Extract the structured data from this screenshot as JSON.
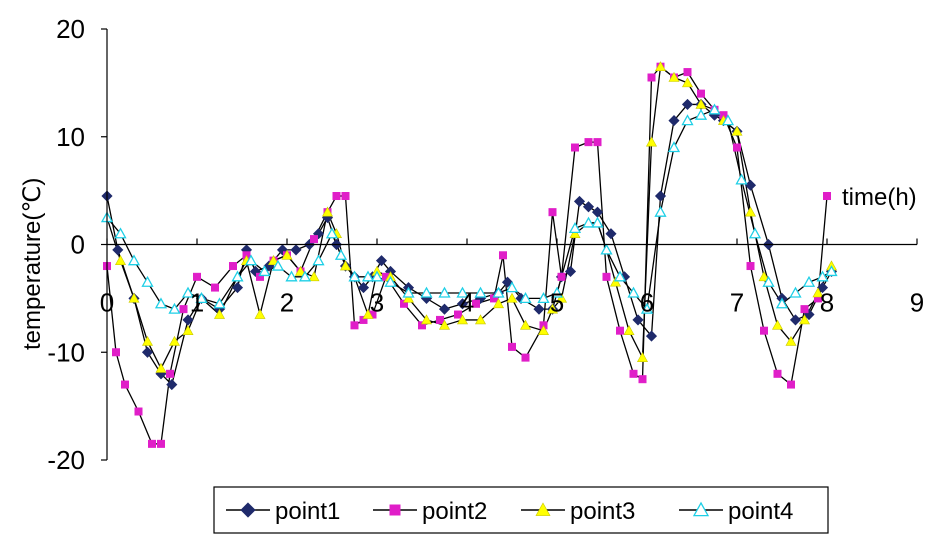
{
  "chart_data": {
    "type": "line",
    "xlabel": "time(h)",
    "ylabel": "temperature(℃)",
    "xlim": [
      0,
      9
    ],
    "ylim": [
      -20,
      20
    ],
    "xticks": [
      "0",
      "1",
      "2",
      "3",
      "4",
      "5",
      "6",
      "7",
      "8",
      "9"
    ],
    "yticks": [
      "20",
      "10",
      "0",
      "-10",
      "-20"
    ],
    "legend_position": "bottom",
    "grid": false,
    "series": [
      {
        "name": "point1",
        "color": "#1f2a6b",
        "marker": "diamond",
        "x": [
          0.0,
          0.12,
          0.3,
          0.45,
          0.6,
          0.72,
          0.9,
          1.05,
          1.25,
          1.45,
          1.55,
          1.65,
          1.8,
          1.95,
          2.1,
          2.25,
          2.35,
          2.45,
          2.55,
          2.65,
          2.75,
          2.85,
          2.95,
          3.05,
          3.15,
          3.35,
          3.55,
          3.75,
          3.95,
          4.15,
          4.35,
          4.45,
          4.6,
          4.8,
          4.95,
          5.05,
          5.15,
          5.25,
          5.35,
          5.45,
          5.6,
          5.75,
          5.9,
          6.05,
          6.15,
          6.3,
          6.45,
          6.6,
          6.75,
          6.85,
          7.0,
          7.15,
          7.35,
          7.5,
          7.65,
          7.8,
          7.95,
          8.05
        ],
        "y": [
          4.5,
          -0.5,
          -5.0,
          -10.0,
          -12.0,
          -13.0,
          -7.0,
          -5.0,
          -6.0,
          -4.0,
          -0.5,
          -2.5,
          -2.0,
          -0.5,
          -0.5,
          0.0,
          1.0,
          2.5,
          0.0,
          -2.0,
          -3.0,
          -4.0,
          -3.0,
          -1.5,
          -2.5,
          -4.0,
          -5.0,
          -6.0,
          -5.5,
          -5.0,
          -4.5,
          -3.5,
          -5.0,
          -6.0,
          -6.0,
          -3.0,
          -2.5,
          4.0,
          3.5,
          3.0,
          1.0,
          -3.0,
          -7.0,
          -8.5,
          4.5,
          11.5,
          13.0,
          13.0,
          12.0,
          11.5,
          10.5,
          5.5,
          0.0,
          -5.0,
          -7.0,
          -6.5,
          -4.0,
          -2.5
        ]
      },
      {
        "name": "point2",
        "color": "#e01ec8",
        "marker": "square",
        "x": [
          0.0,
          0.1,
          0.2,
          0.35,
          0.5,
          0.6,
          0.7,
          0.85,
          1.0,
          1.2,
          1.4,
          1.55,
          1.7,
          1.85,
          2.0,
          2.15,
          2.3,
          2.45,
          2.55,
          2.65,
          2.75,
          2.85,
          2.95,
          3.1,
          3.3,
          3.5,
          3.7,
          3.9,
          4.1,
          4.3,
          4.4,
          4.5,
          4.65,
          4.85,
          4.95,
          5.05,
          5.2,
          5.35,
          5.45,
          5.55,
          5.7,
          5.85,
          5.95,
          6.05,
          6.15,
          6.3,
          6.45,
          6.6,
          6.75,
          6.85,
          7.0,
          7.15,
          7.3,
          7.45,
          7.6,
          7.75,
          7.9,
          8.0
        ],
        "y": [
          -2.0,
          -10.0,
          -13.0,
          -15.5,
          -18.5,
          -18.5,
          -12.0,
          -6.0,
          -3.0,
          -4.0,
          -2.0,
          -1.0,
          -3.0,
          -1.5,
          -1.0,
          -2.5,
          0.5,
          3.0,
          4.5,
          4.5,
          -7.5,
          -7.0,
          -6.5,
          -3.0,
          -5.5,
          -7.5,
          -7.0,
          -6.5,
          -5.5,
          -5.0,
          -1.0,
          -9.5,
          -10.5,
          -7.5,
          3.0,
          -3.0,
          9.0,
          9.5,
          9.5,
          -3.0,
          -8.0,
          -12.0,
          -12.5,
          15.5,
          16.5,
          15.5,
          16.0,
          14.0,
          12.5,
          12.0,
          9.0,
          -2.0,
          -8.0,
          -12.0,
          -13.0,
          -6.0,
          -5.0,
          4.5
        ]
      },
      {
        "name": "point3",
        "color": "#ffff00",
        "marker": "triangle",
        "x": [
          0.0,
          0.15,
          0.3,
          0.45,
          0.6,
          0.75,
          0.9,
          1.05,
          1.25,
          1.45,
          1.55,
          1.7,
          1.85,
          2.0,
          2.15,
          2.3,
          2.45,
          2.55,
          2.65,
          2.75,
          2.9,
          3.0,
          3.15,
          3.35,
          3.55,
          3.75,
          3.95,
          4.15,
          4.35,
          4.5,
          4.65,
          4.85,
          4.95,
          5.05,
          5.2,
          5.35,
          5.45,
          5.55,
          5.65,
          5.8,
          5.95,
          6.05,
          6.15,
          6.3,
          6.45,
          6.6,
          6.75,
          6.85,
          7.0,
          7.15,
          7.3,
          7.45,
          7.6,
          7.75,
          7.9,
          8.05
        ],
        "y": [
          2.5,
          -1.5,
          -5.0,
          -9.0,
          -11.5,
          -9.0,
          -8.0,
          -5.0,
          -6.5,
          -3.0,
          -1.5,
          -6.5,
          -1.5,
          -1.0,
          -2.5,
          -3.0,
          3.0,
          1.0,
          -2.0,
          -3.0,
          -6.5,
          -2.5,
          -3.0,
          -5.0,
          -7.0,
          -7.5,
          -7.0,
          -7.0,
          -5.5,
          -5.0,
          -7.5,
          -8.0,
          -6.0,
          -5.0,
          1.0,
          2.0,
          2.0,
          -0.5,
          -3.5,
          -8.0,
          -10.5,
          9.5,
          16.5,
          15.5,
          15.0,
          13.0,
          12.5,
          11.5,
          10.5,
          3.0,
          -3.0,
          -7.5,
          -9.0,
          -7.0,
          -4.5,
          -2.0
        ]
      },
      {
        "name": "point4",
        "color": "#1ecfe6",
        "marker": "triangle-open",
        "x": [
          0.0,
          0.15,
          0.3,
          0.45,
          0.6,
          0.75,
          0.9,
          1.05,
          1.25,
          1.45,
          1.6,
          1.75,
          1.9,
          2.05,
          2.2,
          2.35,
          2.5,
          2.6,
          2.75,
          2.9,
          3.0,
          3.15,
          3.35,
          3.55,
          3.75,
          3.95,
          4.15,
          4.35,
          4.5,
          4.65,
          4.85,
          5.0,
          5.2,
          5.35,
          5.45,
          5.55,
          5.7,
          5.85,
          6.0,
          6.15,
          6.3,
          6.45,
          6.6,
          6.75,
          6.9,
          7.05,
          7.2,
          7.35,
          7.5,
          7.65,
          7.8,
          7.95,
          8.05
        ],
        "y": [
          2.5,
          1.0,
          -1.5,
          -3.5,
          -5.5,
          -6.0,
          -4.5,
          -5.0,
          -5.5,
          -3.0,
          -1.5,
          -2.5,
          -2.0,
          -3.0,
          -3.0,
          -1.5,
          1.0,
          -1.0,
          -3.0,
          -3.0,
          -3.0,
          -3.5,
          -4.5,
          -4.5,
          -4.5,
          -4.5,
          -4.5,
          -4.5,
          -4.0,
          -5.0,
          -5.0,
          -4.5,
          1.5,
          2.0,
          2.0,
          -0.5,
          -3.0,
          -4.5,
          -6.0,
          3.0,
          9.0,
          11.5,
          12.0,
          12.5,
          11.5,
          6.0,
          1.0,
          -3.5,
          -5.5,
          -4.5,
          -3.5,
          -3.0,
          -2.5
        ]
      }
    ]
  }
}
